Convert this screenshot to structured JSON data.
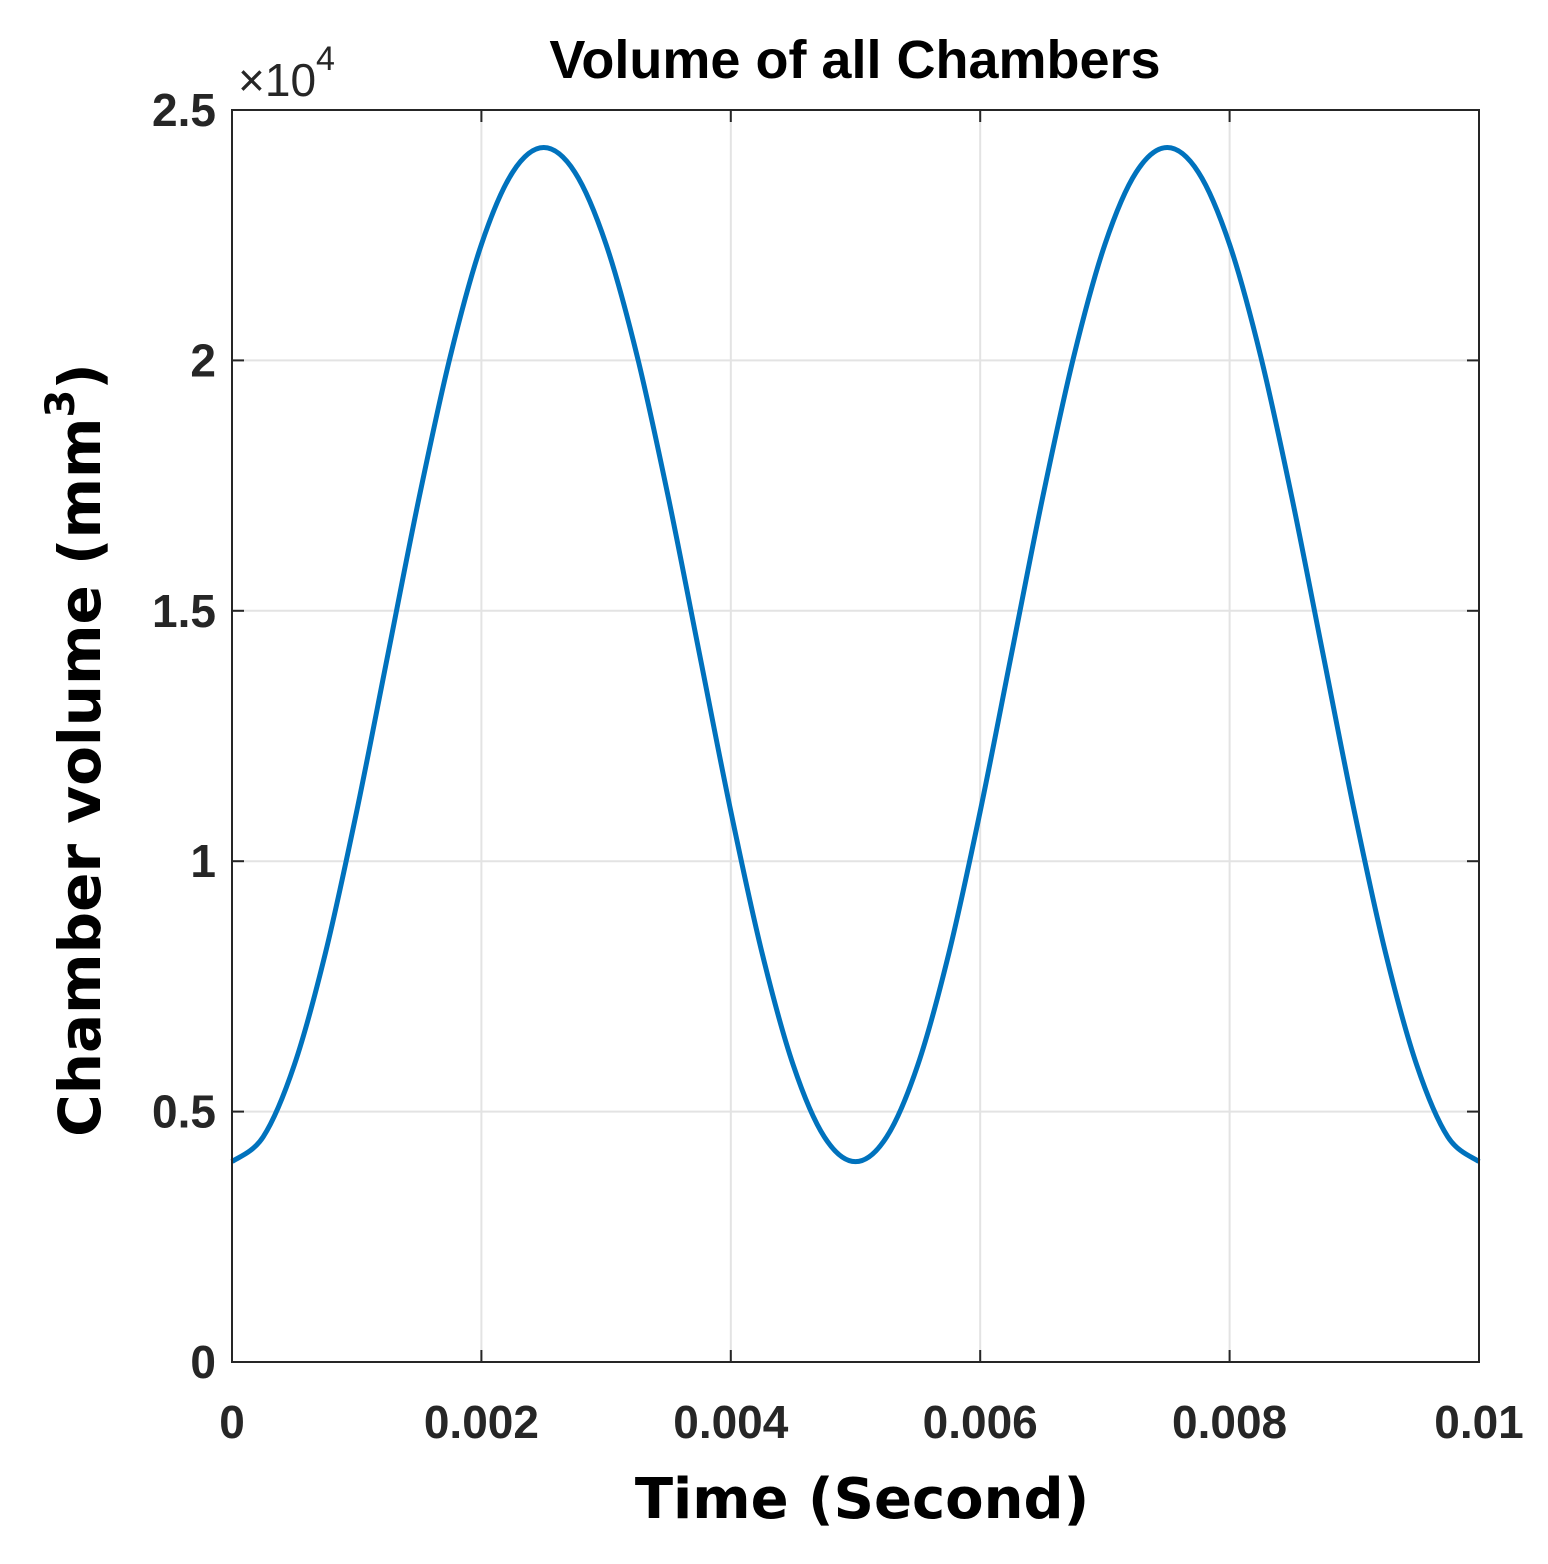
{
  "chart_data": {
    "type": "line",
    "title": "Volume of all Chambers",
    "xlabel": "Time (Second)",
    "ylabel": "Chamber volume (mm",
    "ylabel_superscript": "3",
    "ylabel_suffix": ")",
    "y_multiplier": "×10",
    "y_multiplier_exponent": "4",
    "xlim": [
      0,
      0.01
    ],
    "ylim": [
      0,
      25000
    ],
    "xticks": [
      0,
      0.002,
      0.004,
      0.006,
      0.008,
      0.01
    ],
    "xtick_labels": [
      "0",
      "0.002",
      "0.004",
      "0.006",
      "0.008",
      "0.01"
    ],
    "yticks": [
      0,
      5000,
      10000,
      15000,
      20000,
      25000
    ],
    "ytick_labels": [
      "0",
      "0.5",
      "1",
      "1.5",
      "2",
      "2.5"
    ],
    "grid": true,
    "series": [
      {
        "color": "#0072BD",
        "x": [
          0,
          0.00025,
          0.0005,
          0.00075,
          0.001,
          0.00125,
          0.0015,
          0.00175,
          0.002,
          0.00225,
          0.0025,
          0.00275,
          0.003,
          0.00325,
          0.0035,
          0.00375,
          0.004,
          0.00425,
          0.0045,
          0.00475,
          0.005,
          0.00525,
          0.0055,
          0.00575,
          0.006,
          0.00625,
          0.0065,
          0.00675,
          0.007,
          0.00725,
          0.0075,
          0.00775,
          0.008,
          0.00825,
          0.0085,
          0.00875,
          0.009,
          0.00925,
          0.0095,
          0.00975,
          0.01
        ],
        "y": [
          4000,
          4495,
          5934,
          8174,
          10996,
          14125,
          17254,
          20076,
          22316,
          23755,
          24250,
          23755,
          22316,
          20076,
          17254,
          14125,
          10996,
          8174,
          5934,
          4495,
          4000,
          4495,
          5934,
          8174,
          10996,
          14125,
          17254,
          20076,
          22316,
          23755,
          24250,
          23755,
          22316,
          20076,
          17254,
          14125,
          10996,
          8174,
          5934,
          4495,
          4000
        ]
      }
    ]
  }
}
